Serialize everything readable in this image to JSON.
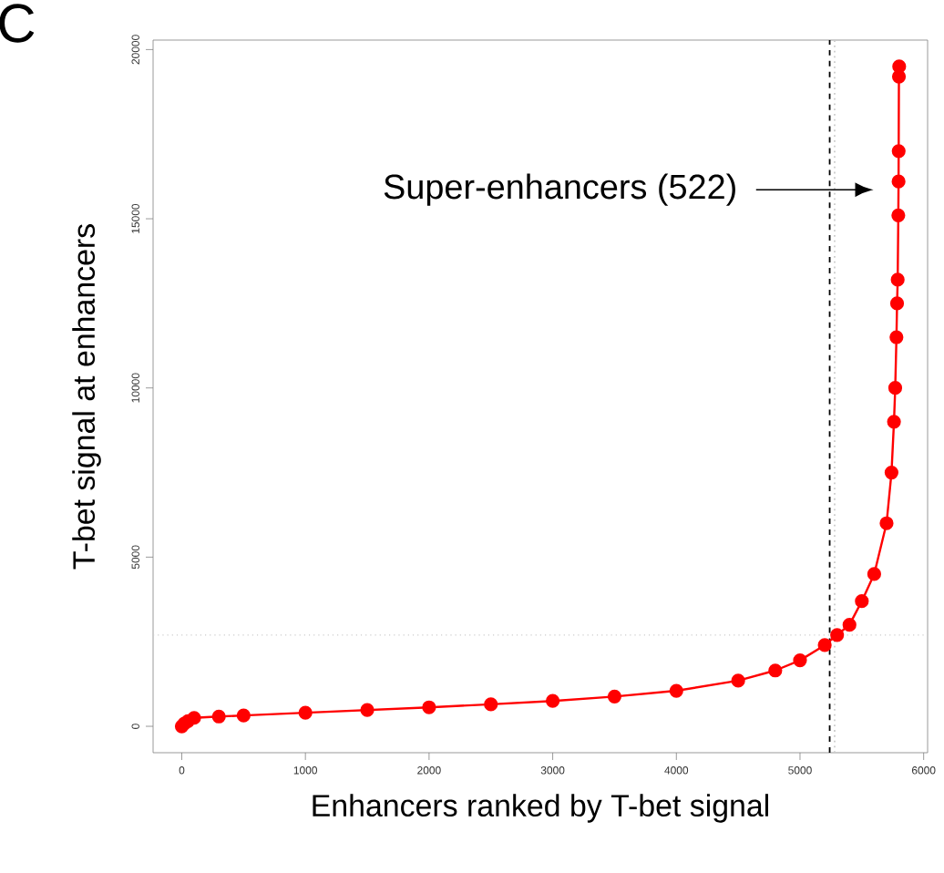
{
  "chart_data": {
    "type": "line",
    "xlabel": "Enhancers ranked by T-bet signal",
    "ylabel": "T-bet signal at enhancers",
    "x": [
      0,
      20,
      50,
      100,
      300,
      500,
      1000,
      1500,
      2000,
      2500,
      3000,
      3500,
      4000,
      4500,
      4800,
      5000,
      5200,
      5300,
      5400,
      5500,
      5600,
      5700,
      5740,
      5760,
      5770,
      5780,
      5785,
      5790,
      5795,
      5797,
      5798,
      5800,
      5802
    ],
    "series": [
      {
        "color": "#ff0000",
        "values": [
          0,
          80,
          150,
          250,
          290,
          320,
          400,
          480,
          560,
          650,
          750,
          880,
          1050,
          1350,
          1650,
          1950,
          2400,
          2700,
          3000,
          3700,
          4500,
          6000,
          7500,
          9000,
          10000,
          11500,
          12500,
          13200,
          15100,
          16100,
          17000,
          19200,
          19500
        ]
      }
    ],
    "marker": "circle",
    "line_style": "solid",
    "xlim": [
      -232,
      6032
    ],
    "ylim": [
      -780,
      20280
    ],
    "xticks": [
      0,
      1000,
      2000,
      3000,
      4000,
      5000,
      6000
    ],
    "yticks": [
      0,
      5000,
      10000,
      15000,
      20000
    ],
    "ref_lines": [
      {
        "axis": "x",
        "value": 5240,
        "color": "#000000",
        "line_style": "dashed"
      },
      {
        "axis": "x",
        "value": 5280,
        "color": "#cccccc",
        "line_style": "dotted"
      },
      {
        "axis": "y",
        "value": 2700,
        "color": "#cccccc",
        "line_style": "dotted"
      }
    ],
    "annotations": [
      "C",
      "Super-enhancers (522)"
    ]
  }
}
